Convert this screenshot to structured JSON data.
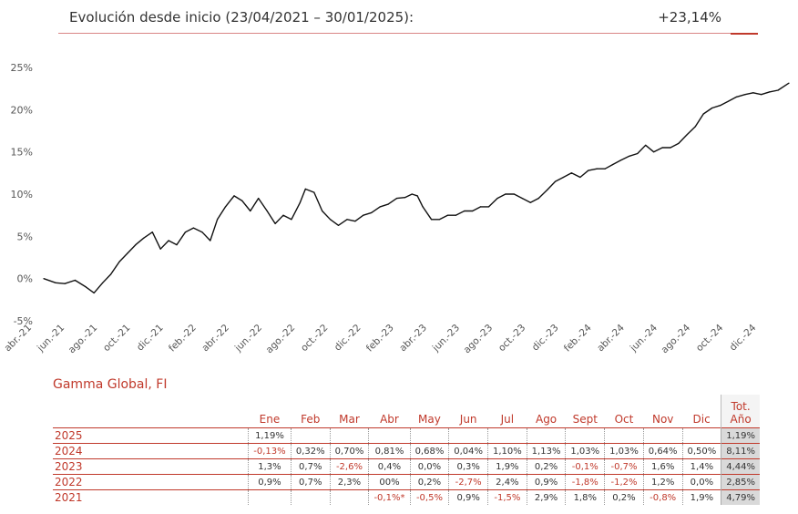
{
  "header": {
    "title": "Evolución desde inicio (23/04/2021 – 30/01/2025):",
    "value": "+23,14%"
  },
  "chart_data": {
    "type": "line",
    "xlabel": "",
    "ylabel": "",
    "ylim": [
      -5,
      25
    ],
    "y_ticks": [
      "25%",
      "20%",
      "15%",
      "10%",
      "5%",
      "0%",
      "-5%"
    ],
    "x_ticks": [
      "abr.-21",
      "jun.-21",
      "ago.-21",
      "oct.-21",
      "dic.-21",
      "feb.-22",
      "abr.-22",
      "jun.-22",
      "ago.-22",
      "oct.-22",
      "dic.-22",
      "feb.-23",
      "abr.-23",
      "jun.-23",
      "ago.-23",
      "oct.-23",
      "dic.-23",
      "feb.-24",
      "abr.-24",
      "jun.-24",
      "ago.-24",
      "oct.-24",
      "dic.-24"
    ],
    "grid": false,
    "series": [
      {
        "color": "#111111",
        "x": [
          "2021-04-23",
          "2021-05-15",
          "2021-06-01",
          "2021-06-20",
          "2021-07-10",
          "2021-07-25",
          "2021-08-10",
          "2021-08-25",
          "2021-09-10",
          "2021-09-25",
          "2021-10-10",
          "2021-10-25",
          "2021-11-10",
          "2021-11-25",
          "2021-12-10",
          "2021-12-25",
          "2022-01-10",
          "2022-01-25",
          "2022-02-10",
          "2022-02-25",
          "2022-03-10",
          "2022-03-25",
          "2022-04-10",
          "2022-04-25",
          "2022-05-10",
          "2022-05-25",
          "2022-06-10",
          "2022-06-25",
          "2022-07-10",
          "2022-07-25",
          "2022-08-10",
          "2022-08-20",
          "2022-09-05",
          "2022-09-20",
          "2022-10-05",
          "2022-10-20",
          "2022-11-05",
          "2022-11-20",
          "2022-12-05",
          "2022-12-20",
          "2023-01-05",
          "2023-01-20",
          "2023-02-05",
          "2023-02-20",
          "2023-03-05",
          "2023-03-15",
          "2023-03-25",
          "2023-04-10",
          "2023-04-25",
          "2023-05-10",
          "2023-05-25",
          "2023-06-10",
          "2023-06-25",
          "2023-07-10",
          "2023-07-25",
          "2023-08-10",
          "2023-08-25",
          "2023-09-10",
          "2023-09-25",
          "2023-10-10",
          "2023-10-25",
          "2023-11-10",
          "2023-11-25",
          "2023-12-10",
          "2023-12-25",
          "2024-01-10",
          "2024-01-25",
          "2024-02-10",
          "2024-02-25",
          "2024-03-10",
          "2024-03-25",
          "2024-04-10",
          "2024-04-25",
          "2024-05-10",
          "2024-05-25",
          "2024-06-10",
          "2024-06-25",
          "2024-07-10",
          "2024-07-25",
          "2024-08-10",
          "2024-08-25",
          "2024-09-10",
          "2024-09-25",
          "2024-10-10",
          "2024-10-25",
          "2024-11-10",
          "2024-11-25",
          "2024-12-10",
          "2024-12-25",
          "2025-01-10",
          "2025-01-30"
        ],
        "y": [
          0.0,
          -0.5,
          -0.6,
          -0.2,
          -1.0,
          -1.7,
          -0.5,
          0.5,
          2.0,
          3.0,
          4.0,
          4.8,
          5.5,
          3.5,
          4.5,
          4.0,
          5.5,
          6.0,
          5.5,
          4.5,
          7.0,
          8.5,
          9.8,
          9.2,
          8.0,
          9.5,
          8.0,
          6.5,
          7.5,
          7.0,
          9.0,
          10.6,
          10.2,
          8.0,
          7.0,
          6.3,
          7.0,
          6.8,
          7.5,
          7.8,
          8.5,
          8.8,
          9.5,
          9.6,
          10.0,
          9.8,
          8.5,
          7.0,
          7.0,
          7.5,
          7.5,
          8.0,
          8.0,
          8.5,
          8.5,
          9.5,
          10.0,
          10.0,
          9.5,
          9.0,
          9.5,
          10.5,
          11.5,
          12.0,
          12.5,
          12.0,
          12.8,
          13.0,
          13.0,
          13.5,
          14.0,
          14.5,
          14.8,
          15.8,
          15.0,
          15.5,
          15.5,
          16.0,
          17.0,
          18.0,
          19.5,
          20.2,
          20.5,
          21.0,
          21.5,
          21.8,
          22.0,
          21.8,
          22.1,
          22.3,
          23.14
        ]
      }
    ]
  },
  "table": {
    "fund_title": "Gamma Global, FI",
    "months": [
      "Ene",
      "Feb",
      "Mar",
      "Abr",
      "May",
      "Jun",
      "Jul",
      "Ago",
      "Sept",
      "Oct",
      "Nov",
      "Dic"
    ],
    "total_header_line1": "Tot.",
    "total_header_line2": "Año",
    "negative_color": "#c0392b",
    "rows": [
      {
        "year": "2025",
        "values": [
          "1,19%",
          "",
          "",
          "",
          "",
          "",
          "",
          "",
          "",
          "",
          "",
          ""
        ],
        "total": "1,19%"
      },
      {
        "year": "2024",
        "values": [
          "-0,13%",
          "0,32%",
          "0,70%",
          "0,81%",
          "0,68%",
          "0,04%",
          "1,10%",
          "1,13%",
          "1,03%",
          "1,03%",
          "0,64%",
          "0,50%"
        ],
        "total": "8,11%"
      },
      {
        "year": "2023",
        "values": [
          "1,3%",
          "0,7%",
          "-2,6%",
          "0,4%",
          "0,0%",
          "0,3%",
          "1,9%",
          "0,2%",
          "-0,1%",
          "-0,7%",
          "1,6%",
          "1,4%"
        ],
        "total": "4,44%"
      },
      {
        "year": "2022",
        "values": [
          "0,9%",
          "0,7%",
          "2,3%",
          "00%",
          "0,2%",
          "-2,7%",
          "2,4%",
          "0,9%",
          "-1,8%",
          "-1,2%",
          "1,2%",
          "0,0%"
        ],
        "total": "2,85%"
      },
      {
        "year": "2021",
        "values": [
          "",
          "",
          "",
          "-0,1%*",
          "-0,5%",
          "0,9%",
          "-1,5%",
          "2,9%",
          "1,8%",
          "0,2%",
          "-0,8%",
          "1,9%"
        ],
        "total": "4,79%"
      }
    ]
  }
}
